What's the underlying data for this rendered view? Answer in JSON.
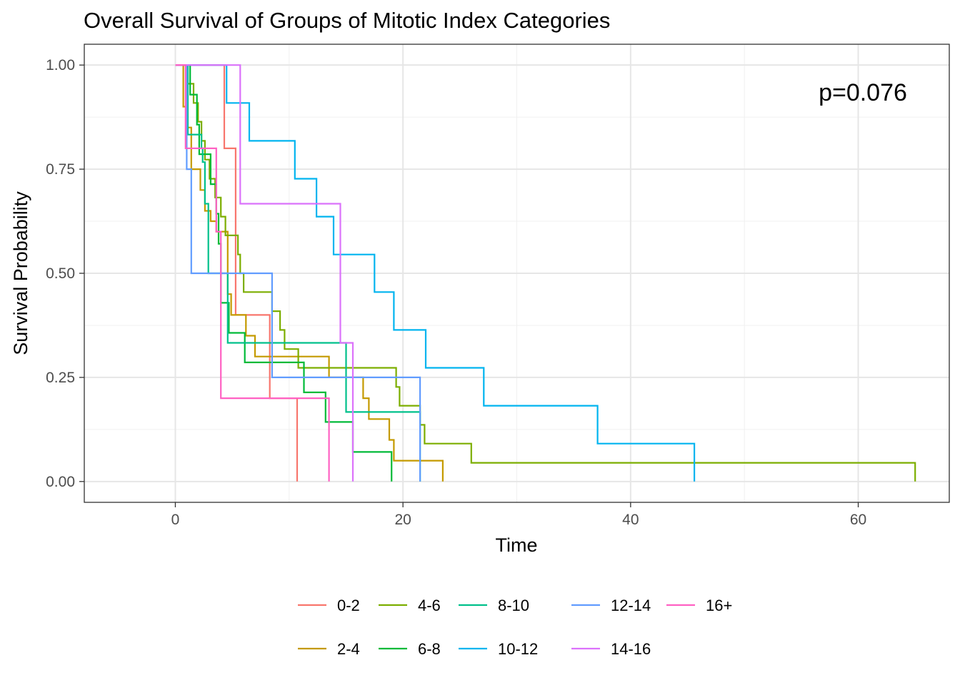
{
  "chart_data": {
    "type": "line",
    "title": "Overall Survival of Groups of Mitotic Index Categories",
    "xlabel": "Time",
    "ylabel": "Survival Probability",
    "xlim": [
      -8,
      68
    ],
    "ylim": [
      -0.05,
      1.05
    ],
    "xticks": [
      0,
      20,
      40,
      60
    ],
    "xtick_labels": [
      "0",
      "20",
      "40",
      "60"
    ],
    "yticks": [
      0,
      0.25,
      0.5,
      0.75,
      1.0
    ],
    "ytick_labels": [
      "0.00",
      "0.25",
      "0.50",
      "0.75",
      "1.00"
    ],
    "grid": true,
    "step": true,
    "legend_position": "bottom",
    "annotation": "p=0.076",
    "series": [
      {
        "name": "0-2",
        "color": "#F8766D",
        "x": [
          0,
          4.3,
          5.3,
          8.3,
          10.7,
          10.7
        ],
        "y": [
          1.0,
          0.8,
          0.4,
          0.2,
          0.2,
          0.0
        ]
      },
      {
        "name": "2-4",
        "color": "#C49A00",
        "x": [
          0,
          0.7,
          1.0,
          1.4,
          2.2,
          2.6,
          3.1,
          3.6,
          4.6,
          4.9,
          5.2,
          6.2,
          7.0,
          13.5,
          16.5,
          17.0,
          18.8,
          19.2,
          21.0,
          23.5,
          23.5
        ],
        "y": [
          1.0,
          0.9,
          0.85,
          0.75,
          0.7,
          0.65,
          0.625,
          0.6,
          0.45,
          0.4,
          0.4,
          0.35,
          0.3,
          0.25,
          0.2,
          0.15,
          0.1,
          0.05,
          0.05,
          0.05,
          0.0
        ],
        "explicit_steps": [
          [
            0,
            1.0
          ],
          [
            0.7,
            1.0
          ],
          [
            0.7,
            0.9
          ],
          [
            1.0,
            0.9
          ],
          [
            1.0,
            0.85
          ],
          [
            1.4,
            0.85
          ],
          [
            1.4,
            0.75
          ],
          [
            2.2,
            0.75
          ],
          [
            2.2,
            0.7
          ],
          [
            2.6,
            0.7
          ],
          [
            2.6,
            0.65
          ],
          [
            3.1,
            0.65
          ],
          [
            3.1,
            0.625
          ],
          [
            3.6,
            0.625
          ],
          [
            3.6,
            0.6
          ],
          [
            4.6,
            0.6
          ],
          [
            4.6,
            0.45
          ],
          [
            4.9,
            0.45
          ],
          [
            4.9,
            0.4
          ],
          [
            6.2,
            0.4
          ],
          [
            6.2,
            0.35
          ],
          [
            7.0,
            0.35
          ],
          [
            7.0,
            0.3
          ],
          [
            13.5,
            0.3
          ],
          [
            13.5,
            0.25
          ],
          [
            16.5,
            0.25
          ],
          [
            16.5,
            0.2
          ],
          [
            17.0,
            0.2
          ],
          [
            17.0,
            0.15
          ],
          [
            18.8,
            0.15
          ],
          [
            18.8,
            0.1
          ],
          [
            19.2,
            0.1
          ],
          [
            19.2,
            0.05
          ],
          [
            23.5,
            0.05
          ],
          [
            23.5,
            0.0
          ]
        ]
      },
      {
        "name": "4-6",
        "color": "#7CAE00",
        "explicit_steps": [
          [
            0,
            1.0
          ],
          [
            1.1,
            1.0
          ],
          [
            1.1,
            0.955
          ],
          [
            1.6,
            0.955
          ],
          [
            1.6,
            0.909
          ],
          [
            2.0,
            0.909
          ],
          [
            2.0,
            0.864
          ],
          [
            2.3,
            0.864
          ],
          [
            2.3,
            0.818
          ],
          [
            2.6,
            0.818
          ],
          [
            2.6,
            0.773
          ],
          [
            3.0,
            0.773
          ],
          [
            3.0,
            0.727
          ],
          [
            3.5,
            0.727
          ],
          [
            3.5,
            0.682
          ],
          [
            4.0,
            0.682
          ],
          [
            4.0,
            0.636
          ],
          [
            4.4,
            0.636
          ],
          [
            4.4,
            0.591
          ],
          [
            5.5,
            0.591
          ],
          [
            5.5,
            0.545
          ],
          [
            5.7,
            0.545
          ],
          [
            5.7,
            0.5
          ],
          [
            6.0,
            0.5
          ],
          [
            6.0,
            0.455
          ],
          [
            8.5,
            0.455
          ],
          [
            8.5,
            0.409
          ],
          [
            9.2,
            0.409
          ],
          [
            9.2,
            0.364
          ],
          [
            9.6,
            0.364
          ],
          [
            9.6,
            0.318
          ],
          [
            10.8,
            0.318
          ],
          [
            10.8,
            0.273
          ],
          [
            19.4,
            0.273
          ],
          [
            19.4,
            0.227
          ],
          [
            19.7,
            0.227
          ],
          [
            19.7,
            0.182
          ],
          [
            21.5,
            0.182
          ],
          [
            21.5,
            0.136
          ],
          [
            21.9,
            0.136
          ],
          [
            21.9,
            0.091
          ],
          [
            26.0,
            0.091
          ],
          [
            26.0,
            0.045
          ],
          [
            65.0,
            0.045
          ],
          [
            65.0,
            0.0
          ]
        ]
      },
      {
        "name": "6-8",
        "color": "#00BA38",
        "explicit_steps": [
          [
            0,
            1.0
          ],
          [
            1.3,
            1.0
          ],
          [
            1.3,
            0.929
          ],
          [
            1.9,
            0.929
          ],
          [
            1.9,
            0.857
          ],
          [
            2.1,
            0.857
          ],
          [
            2.1,
            0.786
          ],
          [
            3.1,
            0.786
          ],
          [
            3.1,
            0.714
          ],
          [
            3.6,
            0.714
          ],
          [
            3.6,
            0.643
          ],
          [
            3.8,
            0.643
          ],
          [
            3.8,
            0.571
          ],
          [
            4.0,
            0.571
          ],
          [
            4.0,
            0.429
          ],
          [
            4.7,
            0.429
          ],
          [
            4.7,
            0.357
          ],
          [
            6.1,
            0.357
          ],
          [
            6.1,
            0.286
          ],
          [
            11.3,
            0.286
          ],
          [
            11.3,
            0.214
          ],
          [
            13.2,
            0.214
          ],
          [
            13.2,
            0.143
          ],
          [
            15.6,
            0.143
          ],
          [
            15.6,
            0.071
          ],
          [
            19.0,
            0.071
          ],
          [
            19.0,
            0.0
          ]
        ]
      },
      {
        "name": "8-10",
        "color": "#00C08B",
        "explicit_steps": [
          [
            0,
            1.0
          ],
          [
            1.1,
            1.0
          ],
          [
            1.1,
            0.833
          ],
          [
            2.3,
            0.833
          ],
          [
            2.3,
            0.8
          ],
          [
            2.4,
            0.8
          ],
          [
            2.4,
            0.767
          ],
          [
            2.6,
            0.767
          ],
          [
            2.6,
            0.667
          ],
          [
            2.9,
            0.667
          ],
          [
            2.9,
            0.5
          ],
          [
            4.6,
            0.5
          ],
          [
            4.6,
            0.333
          ],
          [
            15.0,
            0.333
          ],
          [
            15.0,
            0.167
          ],
          [
            21.5,
            0.167
          ],
          [
            21.5,
            0.0
          ]
        ]
      },
      {
        "name": "10-12",
        "color": "#00B4EF",
        "explicit_steps": [
          [
            0,
            1.0
          ],
          [
            4.5,
            1.0
          ],
          [
            4.5,
            0.909
          ],
          [
            6.5,
            0.909
          ],
          [
            6.5,
            0.818
          ],
          [
            10.5,
            0.818
          ],
          [
            10.5,
            0.727
          ],
          [
            12.4,
            0.727
          ],
          [
            12.4,
            0.636
          ],
          [
            13.9,
            0.636
          ],
          [
            13.9,
            0.545
          ],
          [
            17.5,
            0.545
          ],
          [
            17.5,
            0.455
          ],
          [
            19.2,
            0.455
          ],
          [
            19.2,
            0.364
          ],
          [
            22.0,
            0.364
          ],
          [
            22.0,
            0.273
          ],
          [
            27.1,
            0.273
          ],
          [
            27.1,
            0.182
          ],
          [
            37.1,
            0.182
          ],
          [
            37.1,
            0.091
          ],
          [
            45.6,
            0.091
          ],
          [
            45.6,
            0.0
          ]
        ]
      },
      {
        "name": "12-14",
        "color": "#619CFF",
        "explicit_steps": [
          [
            0,
            1.0
          ],
          [
            1.0,
            1.0
          ],
          [
            1.0,
            0.75
          ],
          [
            1.4,
            0.75
          ],
          [
            1.4,
            0.5
          ],
          [
            8.5,
            0.5
          ],
          [
            8.5,
            0.25
          ],
          [
            21.5,
            0.25
          ],
          [
            21.5,
            0.0
          ]
        ]
      },
      {
        "name": "14-16",
        "color": "#DB72FB",
        "explicit_steps": [
          [
            0,
            1.0
          ],
          [
            5.7,
            1.0
          ],
          [
            5.7,
            0.667
          ],
          [
            14.5,
            0.667
          ],
          [
            14.5,
            0.333
          ],
          [
            15.6,
            0.333
          ],
          [
            15.6,
            0.0
          ]
        ]
      },
      {
        "name": "16+",
        "color": "#FF61C3",
        "explicit_steps": [
          [
            0,
            1.0
          ],
          [
            0.9,
            1.0
          ],
          [
            0.9,
            0.8
          ],
          [
            3.6,
            0.8
          ],
          [
            3.6,
            0.6
          ],
          [
            4.0,
            0.6
          ],
          [
            4.0,
            0.2
          ],
          [
            13.5,
            0.2
          ],
          [
            13.5,
            0.0
          ]
        ]
      }
    ]
  }
}
